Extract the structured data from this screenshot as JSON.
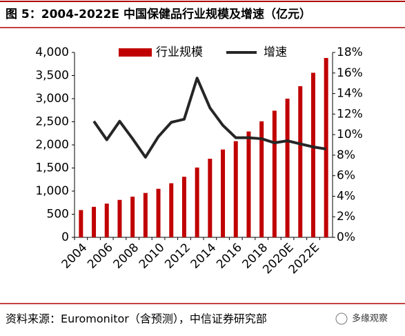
{
  "title": "图 5：2004-2022E 中国保健品行业规模及增速（亿元）",
  "source": "资料来源：Euromonitor（含预测），中信证券研究部",
  "watermark": "多缘观察",
  "chart_data": {
    "type": "bar_line",
    "categories": [
      "2004",
      null,
      "2006",
      null,
      "2008",
      null,
      "2010",
      null,
      "2012",
      null,
      "2014",
      null,
      "2016",
      null,
      "2018",
      null,
      "2020E",
      null,
      "2022E",
      null
    ],
    "series": [
      {
        "name": "行业规模",
        "type": "bar",
        "color": "#c00000",
        "values": [
          590,
          660,
          730,
          810,
          880,
          960,
          1050,
          1170,
          1310,
          1510,
          1700,
          1900,
          2080,
          2290,
          2510,
          2740,
          3000,
          3270,
          3560,
          3880
        ]
      },
      {
        "name": "增速",
        "type": "line",
        "axis": "y2",
        "color": "#262626",
        "values": [
          null,
          11.3,
          9.5,
          11.3,
          9.6,
          7.8,
          9.8,
          11.2,
          11.5,
          15.5,
          12.6,
          10.9,
          9.7,
          9.7,
          9.6,
          9.2,
          9.4,
          9.1,
          8.8,
          8.6
        ]
      }
    ],
    "ylim": [
      0,
      4000
    ],
    "yticks": [
      0,
      500,
      {
        "value": 1000,
        "label": "1,000"
      },
      {
        "value": 1500,
        "label": "1,500"
      },
      {
        "value": 2000,
        "label": "2,000"
      },
      {
        "value": 2500,
        "label": "2,500"
      },
      {
        "value": 3000,
        "label": "3,000"
      },
      {
        "value": 3500,
        "label": "3,500"
      },
      {
        "value": 4000,
        "label": "4,000"
      }
    ],
    "y2lim": [
      0,
      18
    ],
    "y2ticks": [
      {
        "value": 0,
        "label": "0%"
      },
      {
        "value": 2,
        "label": "2%"
      },
      {
        "value": 4,
        "label": "4%"
      },
      {
        "value": 6,
        "label": "6%"
      },
      {
        "value": 8,
        "label": "8%"
      },
      {
        "value": 10,
        "label": "10%"
      },
      {
        "value": 12,
        "label": "12%"
      },
      {
        "value": 14,
        "label": "14%"
      },
      {
        "value": 16,
        "label": "16%"
      },
      {
        "value": 18,
        "label": "18%"
      }
    ],
    "legend": "top"
  }
}
